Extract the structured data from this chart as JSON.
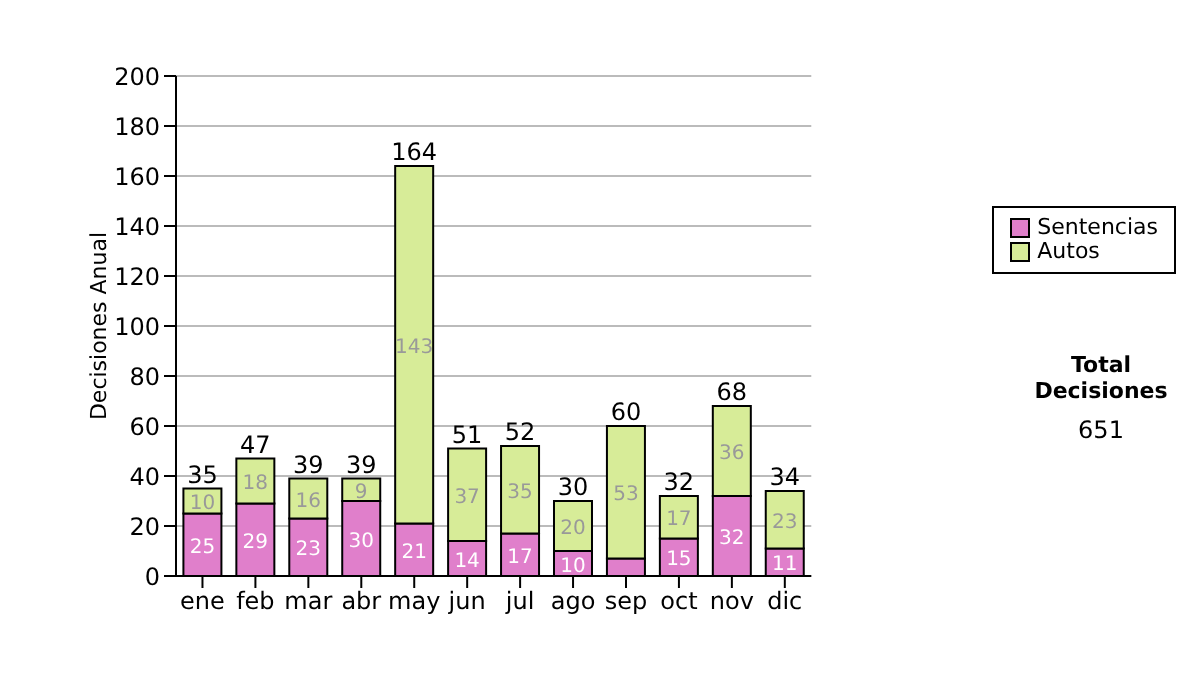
{
  "chart_data": {
    "type": "bar",
    "stacked": true,
    "ylabel": "Decisiones Anual",
    "categories": [
      "ene",
      "feb",
      "mar",
      "abr",
      "may",
      "jun",
      "jul",
      "ago",
      "sep",
      "oct",
      "nov",
      "dic"
    ],
    "series": [
      {
        "name": "Sentencias",
        "color": "#e07fcb",
        "values": [
          25,
          29,
          23,
          30,
          21,
          14,
          17,
          10,
          7,
          15,
          32,
          11
        ],
        "value_labels": [
          "25",
          "29",
          "23",
          "30",
          "21",
          "14",
          "17",
          "10",
          null,
          "15",
          "32",
          "11"
        ]
      },
      {
        "name": "Autos",
        "color": "#d7ec98",
        "values": [
          10,
          18,
          16,
          9,
          143,
          37,
          35,
          20,
          53,
          17,
          36,
          23
        ],
        "value_labels": [
          "10",
          "18",
          "16",
          "9",
          "143",
          "37",
          "35",
          "20",
          "53",
          "17",
          "36",
          "23"
        ]
      }
    ],
    "totals": [
      "35",
      "47",
      "39",
      "39",
      "164",
      "51",
      "52",
      "30",
      "60",
      "32",
      "68",
      "34"
    ],
    "ylim": [
      0,
      200
    ],
    "yticks": [
      0,
      20,
      40,
      60,
      80,
      100,
      120,
      140,
      160,
      180,
      200
    ],
    "grid": "y",
    "legend": "right",
    "annotations": [
      "Total Decisiones",
      "651"
    ]
  }
}
